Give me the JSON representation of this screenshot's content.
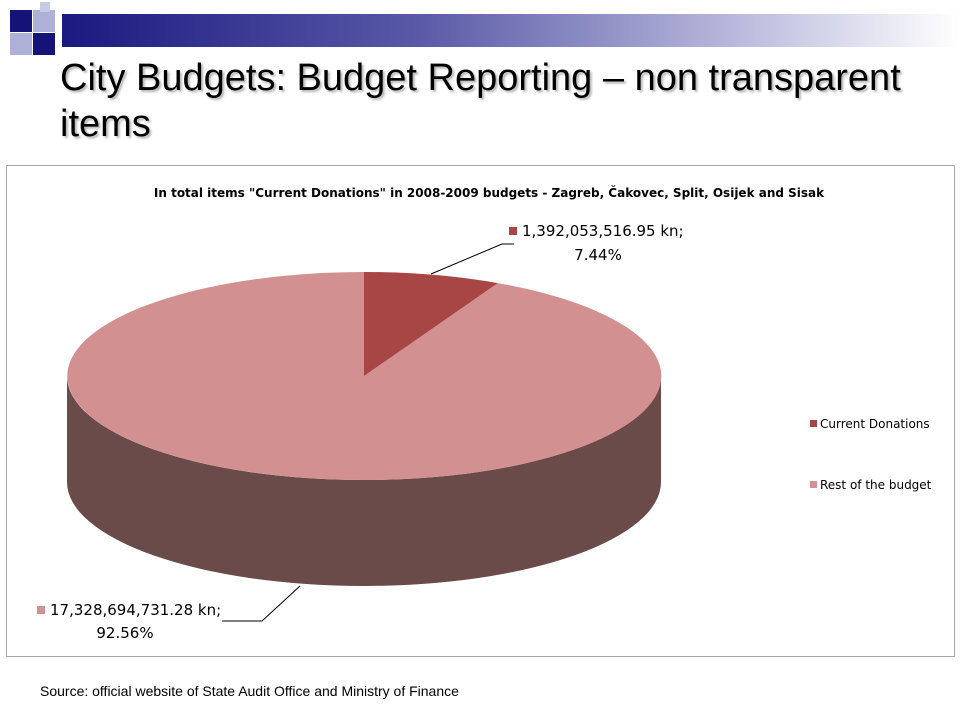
{
  "slide": {
    "title": "City Budgets: Budget Reporting – non transparent items",
    "source": "Source: official website of State Audit Office and Ministry of Finance"
  },
  "colors": {
    "band_dark": "#1a1a80",
    "square_dark": "#141478",
    "square_light": "#aeb0d8",
    "donations_top": "#a84545",
    "donations_side": "#7a2e2e",
    "rest_top": "#d29090",
    "rest_side": "#6b4a4a"
  },
  "chart_data": {
    "type": "pie",
    "title": "In total items \"Current Donations\" in 2008-2009 budgets - Zagreb, Čakovec, Split, Osijek and Sisak",
    "three_d": true,
    "slices": [
      {
        "name": "Current Donations",
        "value": 1392053516.95,
        "percent": 7.44,
        "value_label": "1,392,053,516.95 kn;",
        "percent_label": "7.44%",
        "color": "#a84545"
      },
      {
        "name": "Rest of the budget",
        "value": 17328694731.28,
        "percent": 92.56,
        "value_label": "17,328,694,731.28 kn;",
        "percent_label": "92.56%",
        "color": "#d29090"
      }
    ],
    "legend": {
      "position": "right",
      "entries": [
        "Current Donations",
        "Rest of the budget"
      ]
    }
  }
}
